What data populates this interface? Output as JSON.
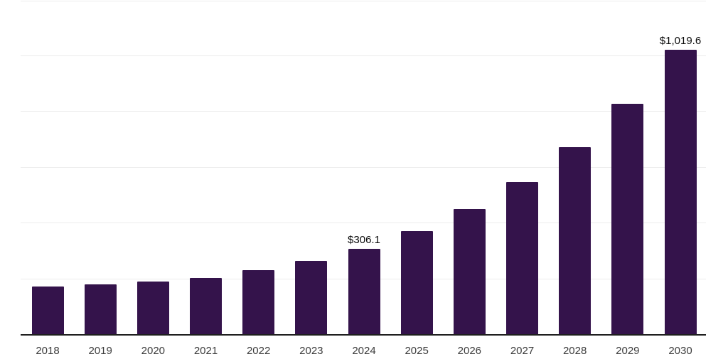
{
  "chart_data": {
    "type": "bar",
    "title": "",
    "xlabel": "",
    "ylabel": "",
    "categories": [
      "2018",
      "2019",
      "2020",
      "2021",
      "2022",
      "2023",
      "2024",
      "2025",
      "2026",
      "2027",
      "2028",
      "2029",
      "2030"
    ],
    "values": [
      170,
      178,
      188,
      202,
      229,
      262,
      306.1,
      371,
      449,
      547,
      672,
      827,
      1019.6
    ],
    "bar_labels": [
      "",
      "",
      "",
      "",
      "",
      "",
      "$306.1",
      "",
      "",
      "",
      "",
      "",
      "$1,019.6"
    ],
    "ylim": [
      0,
      1200
    ],
    "gridline_step": 200,
    "grid": true,
    "legend_position": "none",
    "y_tick_labels_visible": false,
    "colors": {
      "bar": "#34134B",
      "gridline": "#ececec",
      "axis_line": "#1f1f1f",
      "x_tick_label": "#3c3c3c",
      "value_label": "#0a0a0a",
      "background": "#ffffff"
    }
  }
}
